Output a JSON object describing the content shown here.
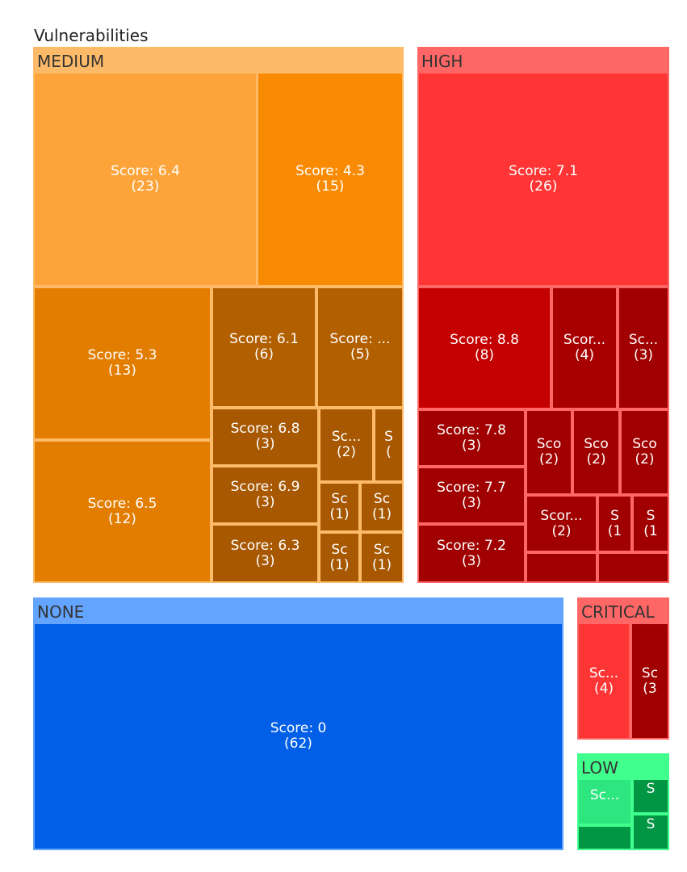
{
  "chart_data": {
    "type": "treemap",
    "title": "Vulnerabilities",
    "groups": [
      {
        "name": "MEDIUM",
        "fill": "#fdba68",
        "tiles": [
          {
            "label": "Score: 6.4",
            "count_label": "(23)",
            "score": 6.4,
            "count": 23,
            "color": "#fca43a"
          },
          {
            "label": "Score: 4.3",
            "count_label": "(15)",
            "score": 4.3,
            "count": 15,
            "color": "#f98b04"
          },
          {
            "label": "Score: 5.3",
            "count_label": "(13)",
            "score": 5.3,
            "count": 13,
            "color": "#e27d00"
          },
          {
            "label": "Score: 6.5",
            "count_label": "(12)",
            "score": 6.5,
            "count": 12,
            "color": "#e27d00"
          },
          {
            "label": "Score: 6.1",
            "count_label": "(6)",
            "score": 6.1,
            "count": 6,
            "color": "#b25f00"
          },
          {
            "label": "Score: ...",
            "count_label": "(5)",
            "count": 5,
            "color": "#b25f00"
          },
          {
            "label": "Score: 6.8",
            "count_label": "(3)",
            "score": 6.8,
            "count": 3,
            "color": "#a75800"
          },
          {
            "label": "Score: 6.9",
            "count_label": "(3)",
            "score": 6.9,
            "count": 3,
            "color": "#a75800"
          },
          {
            "label": "Score: 6.3",
            "count_label": "(3)",
            "score": 6.3,
            "count": 3,
            "color": "#a75800"
          },
          {
            "label": "Sc...",
            "count_label": "(2)",
            "count": 2,
            "color": "#a75800"
          },
          {
            "label": "S",
            "count_label": "(",
            "color": "#a75800"
          },
          {
            "label": "Sc",
            "count_label": "(1)",
            "count": 1,
            "color": "#a75800"
          },
          {
            "label": "Sc",
            "count_label": "(1)",
            "count": 1,
            "color": "#a75800"
          },
          {
            "label": "Sc",
            "count_label": "(1)",
            "count": 1,
            "color": "#a75800"
          },
          {
            "label": "Sc",
            "count_label": "(1)",
            "count": 1,
            "color": "#a75800"
          }
        ]
      },
      {
        "name": "HIGH",
        "fill": "#ff6666",
        "tiles": [
          {
            "label": "Score: 7.1",
            "count_label": "(26)",
            "score": 7.1,
            "count": 26,
            "color": "#ff3535"
          },
          {
            "label": "Score: 8.8",
            "count_label": "(8)",
            "score": 8.8,
            "count": 8,
            "color": "#c40000"
          },
          {
            "label": "Scor...",
            "count_label": "(4)",
            "count": 4,
            "color": "#a80000"
          },
          {
            "label": "Sc...",
            "count_label": "(3)",
            "count": 3,
            "color": "#a00000"
          },
          {
            "label": "Score: 7.8",
            "count_label": "(3)",
            "score": 7.8,
            "count": 3,
            "color": "#a00000"
          },
          {
            "label": "Score: 7.7",
            "count_label": "(3)",
            "score": 7.7,
            "count": 3,
            "color": "#a00000"
          },
          {
            "label": "Score: 7.2",
            "count_label": "(3)",
            "score": 7.2,
            "count": 3,
            "color": "#a00000"
          },
          {
            "label": "Sco",
            "count_label": "(2)",
            "count": 2,
            "color": "#a00000"
          },
          {
            "label": "Sco",
            "count_label": "(2)",
            "count": 2,
            "color": "#a00000"
          },
          {
            "label": "Sco",
            "count_label": "(2)",
            "count": 2,
            "color": "#a00000"
          },
          {
            "label": "Scor...",
            "count_label": "(2)",
            "count": 2,
            "color": "#a00000"
          },
          {
            "label": "S",
            "count_label": "(1",
            "color": "#a00000"
          },
          {
            "label": "S",
            "count_label": "(1",
            "color": "#a00000"
          },
          {
            "label": "",
            "count_label": "",
            "color": "#a00000"
          },
          {
            "label": "",
            "count_label": "",
            "color": "#a00000"
          }
        ]
      },
      {
        "name": "NONE",
        "fill": "#63a4ff",
        "tiles": [
          {
            "label": "Score: 0",
            "count_label": "(62)",
            "score": 0,
            "count": 62,
            "color": "#005fe6"
          }
        ]
      },
      {
        "name": "CRITICAL",
        "fill": "#ff6666",
        "tiles": [
          {
            "label": "Sc...",
            "count_label": "(4)",
            "count": 4,
            "color": "#ff3535"
          },
          {
            "label": "Sc",
            "count_label": "(3",
            "color": "#a00000"
          }
        ]
      },
      {
        "name": "LOW",
        "fill": "#40ff8c",
        "tiles": [
          {
            "label": "Sc...",
            "count_label": "",
            "color": "#2ee680"
          },
          {
            "label": "S",
            "count_label": "",
            "color": "#009644"
          },
          {
            "label": "S",
            "count_label": "",
            "color": "#009644"
          },
          {
            "label": "",
            "count_label": "",
            "color": "#009644"
          }
        ]
      }
    ]
  }
}
